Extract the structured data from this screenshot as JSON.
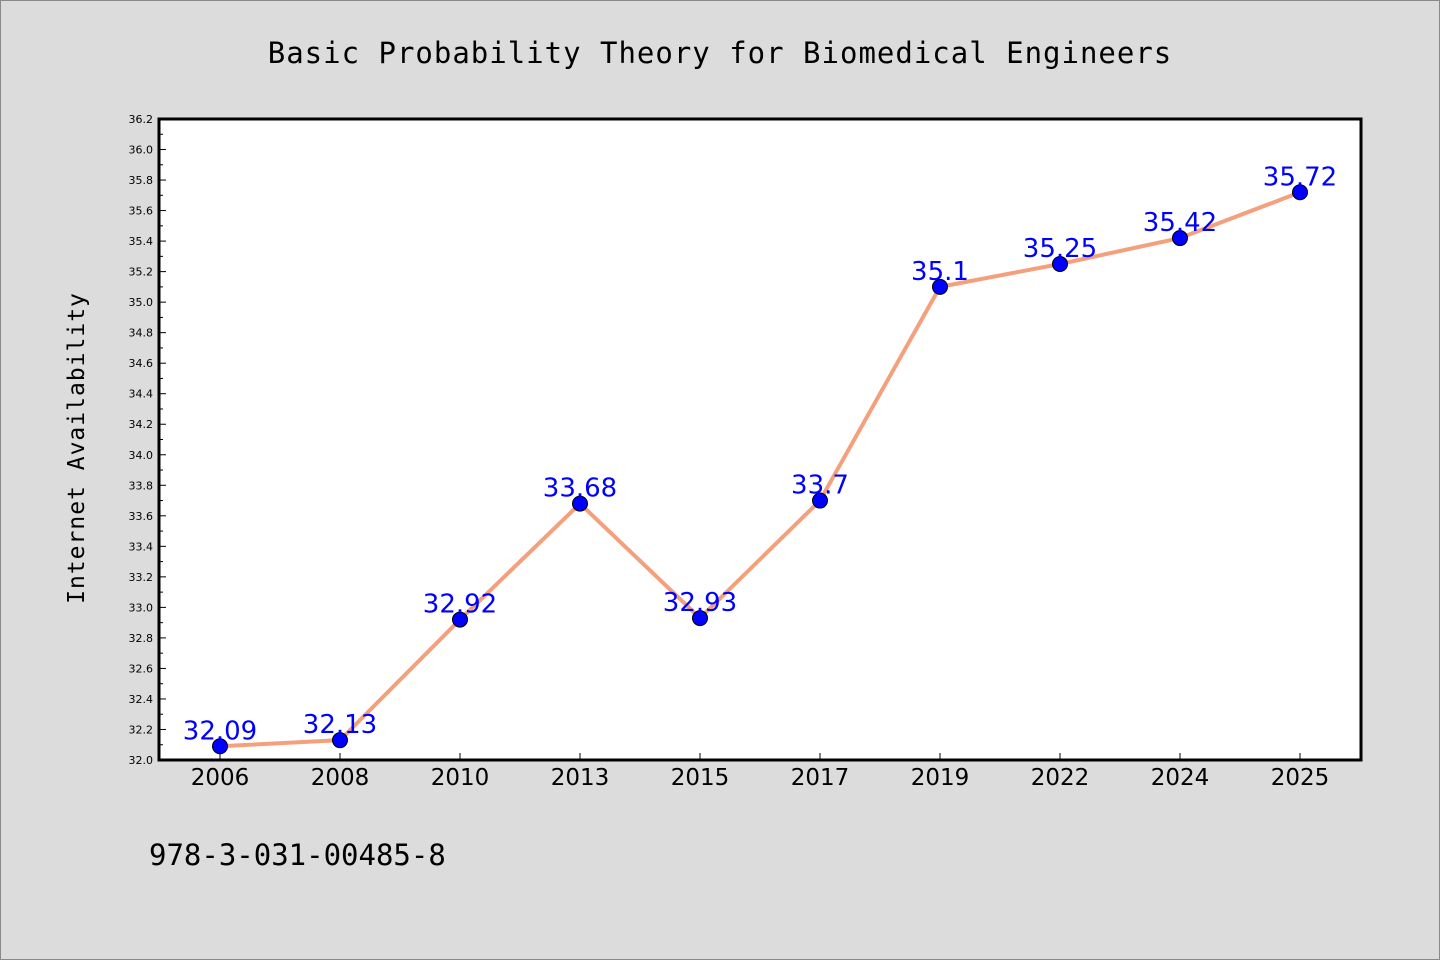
{
  "footer_text": "978-3-031-00485-8",
  "chart_data": {
    "type": "line",
    "title": "Basic Probability Theory for Biomedical Engineers",
    "xlabel": "",
    "ylabel": "Internet Availability",
    "categories": [
      "2006",
      "2008",
      "2010",
      "2013",
      "2015",
      "2017",
      "2019",
      "2022",
      "2024",
      "2025"
    ],
    "series": [
      {
        "values": [
          32.09,
          32.13,
          32.92,
          33.68,
          32.93,
          33.7,
          35.1,
          35.25,
          35.42,
          35.72
        ],
        "labels": [
          "32.09",
          "32.13",
          "32.92",
          "33.68",
          "32.93",
          "33.7",
          "35.1",
          "35.25",
          "35.42",
          "35.72"
        ],
        "line_color": "#f4a07c",
        "marker_color": "#0000ff"
      }
    ],
    "ylim": [
      32.0,
      36.2
    ],
    "yticks": [
      "32.0",
      "32.2",
      "32.4",
      "32.6",
      "32.8",
      "33.0",
      "33.2",
      "33.4",
      "33.6",
      "33.8",
      "34.0",
      "34.2",
      "34.4",
      "34.6",
      "34.8",
      "35.0",
      "35.2",
      "35.4",
      "35.6",
      "35.8",
      "36.0",
      "36.2"
    ],
    "grid": false,
    "legend": "none"
  }
}
